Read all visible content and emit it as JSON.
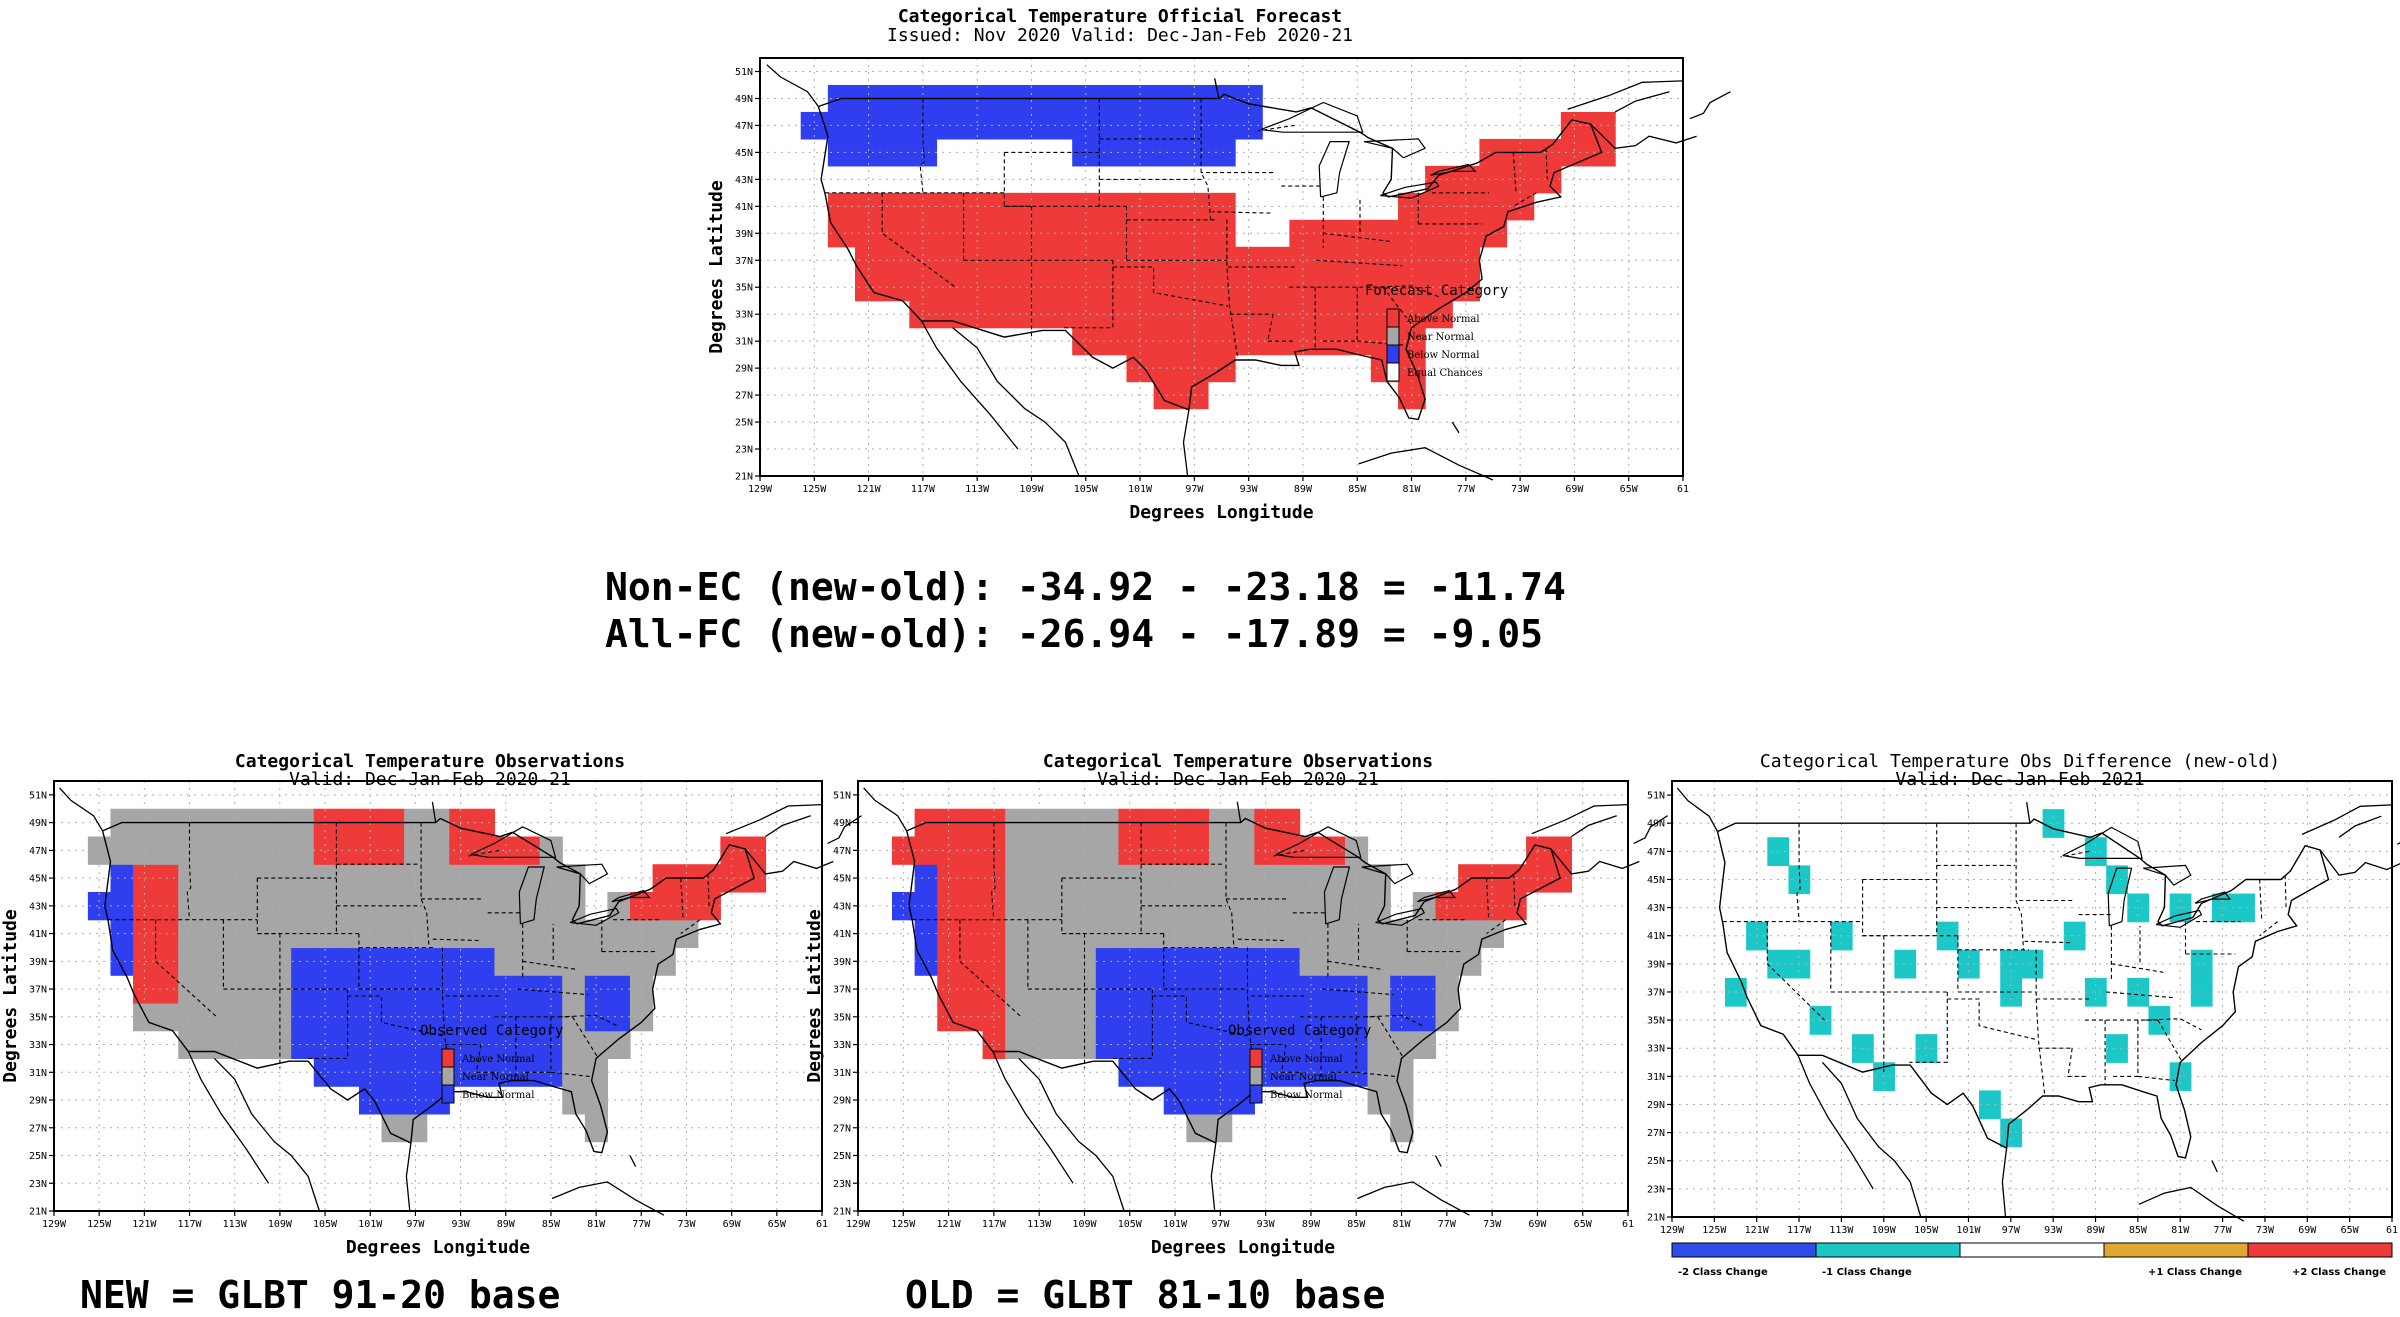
{
  "colors": {
    "above": "#ef3a3a",
    "near": "#a6a6a6",
    "below": "#2f3ff0",
    "equal": "#ffffff",
    "minus2": "#2f4be8",
    "minus1": "#1cc7c7",
    "plus1": "#e0a832",
    "plus2": "#ef3a3a"
  },
  "forecast": {
    "title": "Categorical Temperature Official Forecast",
    "subtitle": "Issued: Nov 2020 Valid: Dec-Jan-Feb 2020-21",
    "xlabel": "Degrees Longitude",
    "ylabel": "Degrees Latitude",
    "legend_title": "Forecast Category",
    "legend": [
      "Above Normal",
      "Near Normal",
      "Below Normal",
      "Equal Chances"
    ]
  },
  "obs_new": {
    "title": "Categorical Temperature Observations",
    "subtitle": "Valid: Dec-Jan-Feb 2020-21",
    "xlabel": "Degrees Longitude",
    "ylabel": "Degrees Latitude",
    "legend_title": "Observed Category",
    "legend": [
      "Above Normal",
      "Near Normal",
      "Below Normal"
    ]
  },
  "obs_old": {
    "title": "Categorical Temperature Observations",
    "subtitle": "Valid: Dec-Jan-Feb 2020-21",
    "xlabel": "Degrees Longitude",
    "ylabel": "Degrees Latitude",
    "legend_title": "Observed Category",
    "legend": [
      "Above Normal",
      "Near Normal",
      "Below Normal"
    ]
  },
  "diff": {
    "title": "Categorical Temperature Obs Difference (new-old)",
    "subtitle": "Valid: Dec-Jan-Feb 2021",
    "colorbar": [
      "-2 Class Change",
      "-1 Class Change",
      "",
      "+1 Class Change",
      "+2 Class Change"
    ]
  },
  "axes": {
    "lat_ticks": [
      "51N",
      "49N",
      "47N",
      "45N",
      "43N",
      "41N",
      "39N",
      "37N",
      "35N",
      "33N",
      "31N",
      "29N",
      "27N",
      "25N",
      "23N",
      "21N"
    ],
    "lon_ticks": [
      "129W",
      "125W",
      "121W",
      "117W",
      "113W",
      "109W",
      "105W",
      "101W",
      "97W",
      "93W",
      "89W",
      "85W",
      "81W",
      "77W",
      "73W",
      "69W",
      "65W",
      "61"
    ]
  },
  "scores": {
    "non_ec": "Non-EC (new-old): -34.92 - -23.18 = -11.74",
    "all_fc": "All-FC (new-old): -26.94 - -17.89 = -9.05"
  },
  "captions": {
    "new": "NEW = GLBT 91-20 base",
    "old": "OLD = GLBT 81-10 base"
  }
}
